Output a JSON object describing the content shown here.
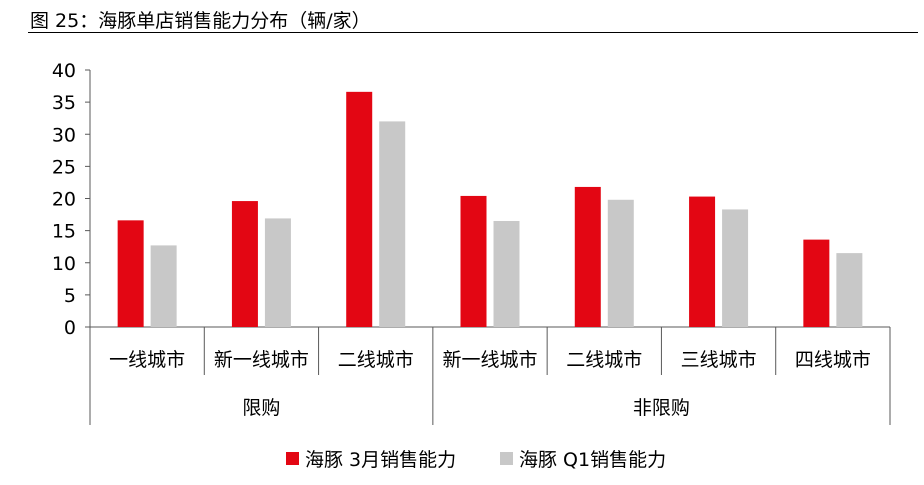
{
  "figure_title": "图 25：海豚单店销售能力分布（辆/家）",
  "colors": {
    "series1": "#e30613",
    "series2": "#c8c8c8",
    "axis": "#595959"
  },
  "chart_data": {
    "type": "bar",
    "title": "图 25：海豚单店销售能力分布（辆/家）",
    "xlabel": "",
    "ylabel": "",
    "ylim": [
      0,
      40
    ],
    "yticks": [
      0,
      5,
      10,
      15,
      20,
      25,
      30,
      35,
      40
    ],
    "grid": false,
    "legend": "bottom-center",
    "groups": [
      {
        "name": "限购",
        "categories": [
          "一线城市",
          "新一线城市",
          "二线城市"
        ]
      },
      {
        "name": "非限购",
        "categories": [
          "新一线城市",
          "二线城市",
          "三线城市",
          "四线城市"
        ]
      }
    ],
    "categories": [
      "一线城市",
      "新一线城市",
      "二线城市",
      "新一线城市",
      "二线城市",
      "三线城市",
      "四线城市"
    ],
    "series": [
      {
        "name": "海豚 3月销售能力",
        "values": [
          16.6,
          19.6,
          36.6,
          20.4,
          21.8,
          20.3,
          13.6
        ]
      },
      {
        "name": "海豚 Q1销售能力",
        "values": [
          12.7,
          16.9,
          32.0,
          16.5,
          19.8,
          18.3,
          11.5
        ]
      }
    ]
  }
}
